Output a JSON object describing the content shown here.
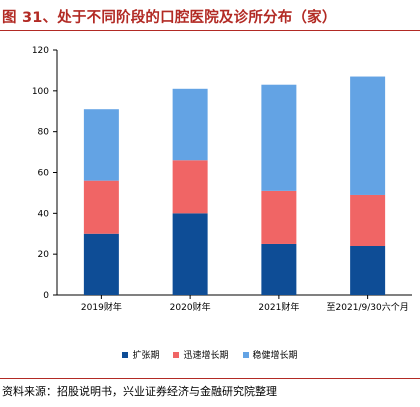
{
  "header": {
    "title": "图 31、处于不同阶段的口腔医院及诊所分布（家）"
  },
  "footer": {
    "source": "资料来源：招股说明书，兴业证券经济与金融研究院整理"
  },
  "colors": {
    "title": "#b22a24",
    "rule": "#b22a24"
  },
  "chart_data": {
    "type": "bar",
    "stacked": true,
    "title": "",
    "xlabel": "",
    "ylabel": "",
    "ylim": [
      0,
      120
    ],
    "yticks": [
      0,
      20,
      40,
      60,
      80,
      100,
      120
    ],
    "grid": false,
    "legend_position": "bottom",
    "categories": [
      "2019财年",
      "2020财年",
      "2021财年",
      "至2021/9/30六个月"
    ],
    "series": [
      {
        "name": "扩张期",
        "color": "#0e4d96",
        "values": [
          30,
          40,
          25,
          24
        ]
      },
      {
        "name": "迅速增长期",
        "color": "#f06565",
        "values": [
          26,
          26,
          26,
          25
        ]
      },
      {
        "name": "稳健增长期",
        "color": "#63a3e4",
        "values": [
          35,
          35,
          52,
          58
        ]
      }
    ]
  }
}
